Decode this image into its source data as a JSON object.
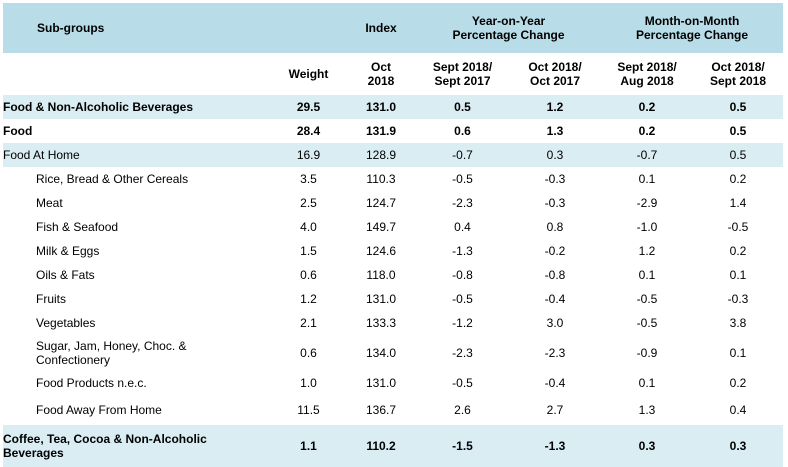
{
  "headers": {
    "subgroups": "Sub-groups",
    "index": "Index",
    "yoy": "Year-on-Year\nPercentage Change",
    "mom": "Month-on-Month\nPercentage Change",
    "weight": "Weight",
    "index_sub": "Oct\n2018",
    "yoy_a": "Sept 2018/\nSept 2017",
    "yoy_b": "Oct 2018/\nOct 2017",
    "mom_a": "Sept 2018/\nAug 2018",
    "mom_b": "Oct 2018/\nSept 2018"
  },
  "rows": [
    {
      "name": "Food & Non-Alcoholic Beverages",
      "weight": "29.5",
      "index": "131.0",
      "yoy_a": "0.5",
      "yoy_b": "1.2",
      "mom_a": "0.2",
      "mom_b": "0.5"
    },
    {
      "name": "Food",
      "weight": "28.4",
      "index": "131.9",
      "yoy_a": "0.6",
      "yoy_b": "1.3",
      "mom_a": "0.2",
      "mom_b": "0.5"
    },
    {
      "name": "Food At Home",
      "weight": "16.9",
      "index": "128.9",
      "yoy_a": "-0.7",
      "yoy_b": "0.3",
      "mom_a": "-0.7",
      "mom_b": "0.5"
    },
    {
      "name": "Rice, Bread & Other Cereals",
      "weight": "3.5",
      "index": "110.3",
      "yoy_a": "-0.5",
      "yoy_b": "-0.3",
      "mom_a": "0.1",
      "mom_b": "0.2"
    },
    {
      "name": "Meat",
      "weight": "2.5",
      "index": "124.7",
      "yoy_a": "-2.3",
      "yoy_b": "-0.3",
      "mom_a": "-2.9",
      "mom_b": "1.4"
    },
    {
      "name": "Fish & Seafood",
      "weight": "4.0",
      "index": "149.7",
      "yoy_a": "0.4",
      "yoy_b": "0.8",
      "mom_a": "-1.0",
      "mom_b": "-0.5"
    },
    {
      "name": "Milk & Eggs",
      "weight": "1.5",
      "index": "124.6",
      "yoy_a": "-1.3",
      "yoy_b": "-0.2",
      "mom_a": "1.2",
      "mom_b": "0.2"
    },
    {
      "name": "Oils & Fats",
      "weight": "0.6",
      "index": "118.0",
      "yoy_a": "-0.8",
      "yoy_b": "-0.8",
      "mom_a": "0.1",
      "mom_b": "0.1"
    },
    {
      "name": "Fruits",
      "weight": "1.2",
      "index": "131.0",
      "yoy_a": "-0.5",
      "yoy_b": "-0.4",
      "mom_a": "-0.5",
      "mom_b": "-0.3"
    },
    {
      "name": "Vegetables",
      "weight": "2.1",
      "index": "133.3",
      "yoy_a": "-1.2",
      "yoy_b": "3.0",
      "mom_a": "-0.5",
      "mom_b": "3.8"
    },
    {
      "name": "Sugar, Jam, Honey, Choc. &\nConfectionery",
      "weight": "0.6",
      "index": "134.0",
      "yoy_a": "-2.3",
      "yoy_b": "-2.3",
      "mom_a": "-0.9",
      "mom_b": "0.1"
    },
    {
      "name": "Food Products n.e.c.",
      "weight": "1.0",
      "index": "131.0",
      "yoy_a": "-0.5",
      "yoy_b": "-0.4",
      "mom_a": "0.1",
      "mom_b": "0.2"
    },
    {
      "name": "Food Away From Home",
      "weight": "11.5",
      "index": "136.7",
      "yoy_a": "2.6",
      "yoy_b": "2.7",
      "mom_a": "1.3",
      "mom_b": "0.4"
    },
    {
      "name": "Coffee, Tea, Cocoa & Non-Alcoholic\nBeverages",
      "weight": "1.1",
      "index": "110.2",
      "yoy_a": "-1.5",
      "yoy_b": "-1.3",
      "mom_a": "0.3",
      "mom_b": "0.3"
    }
  ]
}
